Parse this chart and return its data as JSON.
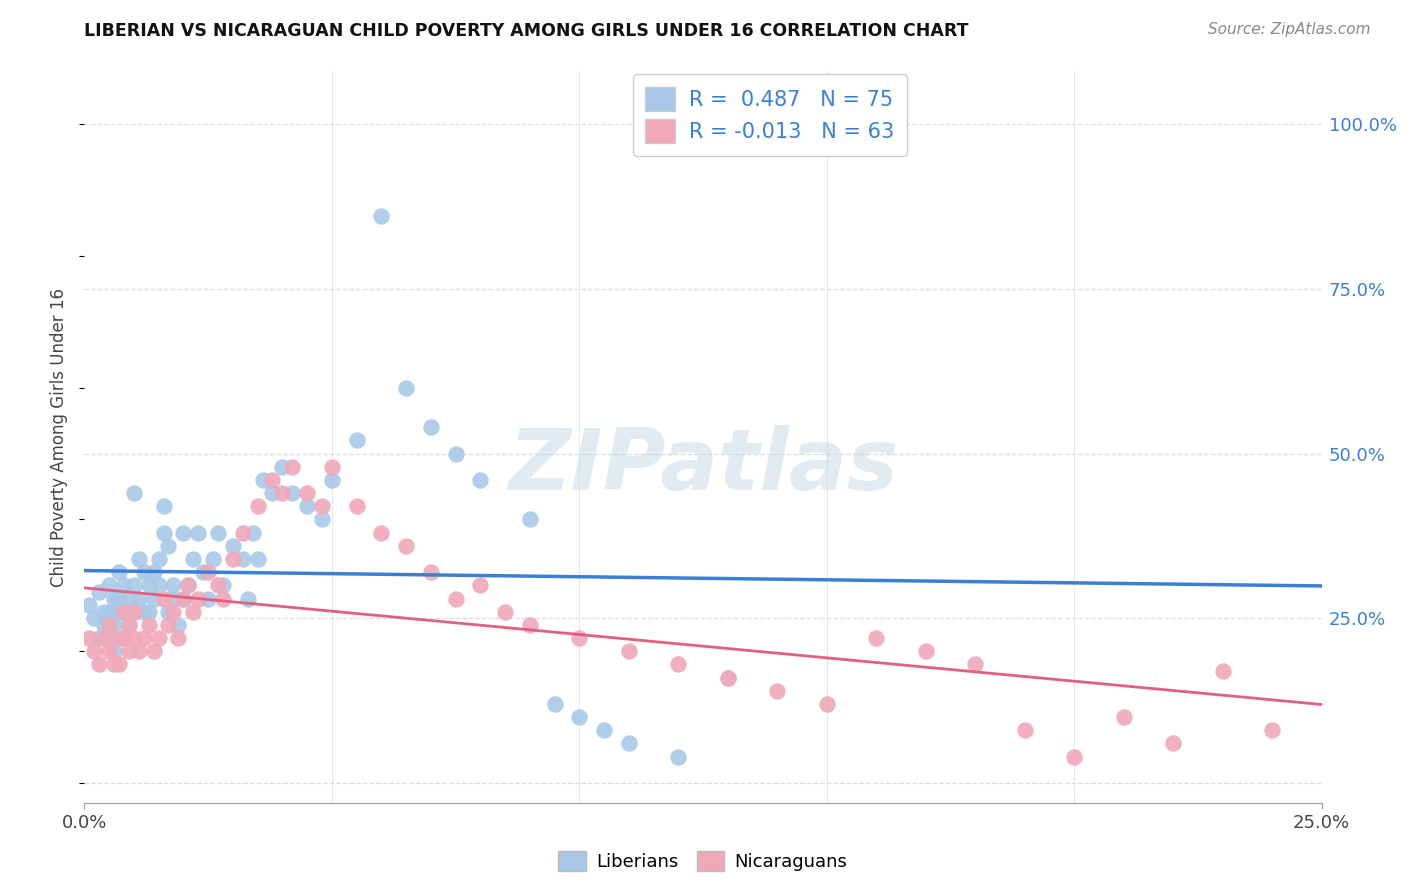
{
  "title": "LIBERIAN VS NICARAGUAN CHILD POVERTY AMONG GIRLS UNDER 16 CORRELATION CHART",
  "source": "Source: ZipAtlas.com",
  "ylabel": "Child Poverty Among Girls Under 16",
  "xlim": [
    0.0,
    0.25
  ],
  "ylim": [
    -0.03,
    1.08
  ],
  "ytick_values": [
    0.0,
    0.25,
    0.5,
    0.75,
    1.0
  ],
  "ytick_labels": [
    "",
    "25.0%",
    "50.0%",
    "75.0%",
    "100.0%"
  ],
  "xtick_values": [
    0.0,
    0.25
  ],
  "xtick_labels": [
    "0.0%",
    "25.0%"
  ],
  "liberian_color": "#a8c8e8",
  "nicaraguan_color": "#f0a8b8",
  "liberian_line_color": "#3a7fd4",
  "nicaraguan_line_color": "#e06080",
  "dash_line_color": "#b0c8d8",
  "r_liberian": 0.487,
  "n_liberian": 75,
  "r_nicaraguan": -0.013,
  "n_nicaraguan": 63,
  "bg_color": "#ffffff",
  "grid_color": "#d5dfe8",
  "watermark": "ZIPatlas",
  "title_color": "#111111",
  "source_color": "#888888",
  "legend_r_color": "#000000",
  "legend_val_color": "#3a7fd4",
  "liberian_x": [
    0.001,
    0.002,
    0.003,
    0.003,
    0.004,
    0.004,
    0.005,
    0.005,
    0.005,
    0.006,
    0.006,
    0.006,
    0.007,
    0.007,
    0.007,
    0.008,
    0.008,
    0.008,
    0.009,
    0.009,
    0.01,
    0.01,
    0.01,
    0.011,
    0.011,
    0.012,
    0.012,
    0.013,
    0.013,
    0.014,
    0.014,
    0.015,
    0.015,
    0.016,
    0.016,
    0.017,
    0.017,
    0.018,
    0.018,
    0.019,
    0.02,
    0.02,
    0.021,
    0.022,
    0.023,
    0.024,
    0.025,
    0.026,
    0.027,
    0.028,
    0.03,
    0.032,
    0.033,
    0.034,
    0.035,
    0.036,
    0.038,
    0.04,
    0.042,
    0.045,
    0.048,
    0.05,
    0.055,
    0.06,
    0.065,
    0.07,
    0.075,
    0.08,
    0.09,
    0.095,
    0.1,
    0.105,
    0.11,
    0.12,
    0.13
  ],
  "liberian_y": [
    0.27,
    0.25,
    0.29,
    0.22,
    0.26,
    0.24,
    0.3,
    0.22,
    0.26,
    0.28,
    0.24,
    0.2,
    0.26,
    0.28,
    0.32,
    0.26,
    0.22,
    0.3,
    0.24,
    0.28,
    0.3,
    0.26,
    0.44,
    0.28,
    0.34,
    0.26,
    0.32,
    0.3,
    0.26,
    0.32,
    0.28,
    0.34,
    0.3,
    0.42,
    0.38,
    0.36,
    0.26,
    0.3,
    0.28,
    0.24,
    0.28,
    0.38,
    0.3,
    0.34,
    0.38,
    0.32,
    0.28,
    0.34,
    0.38,
    0.3,
    0.36,
    0.34,
    0.28,
    0.38,
    0.34,
    0.46,
    0.44,
    0.48,
    0.44,
    0.42,
    0.4,
    0.46,
    0.52,
    0.86,
    0.6,
    0.54,
    0.5,
    0.46,
    0.4,
    0.12,
    0.1,
    0.08,
    0.06,
    0.04,
    0.16
  ],
  "nicaraguan_x": [
    0.001,
    0.002,
    0.003,
    0.004,
    0.005,
    0.005,
    0.006,
    0.007,
    0.007,
    0.008,
    0.008,
    0.009,
    0.009,
    0.01,
    0.01,
    0.011,
    0.012,
    0.013,
    0.014,
    0.015,
    0.016,
    0.017,
    0.018,
    0.019,
    0.02,
    0.021,
    0.022,
    0.023,
    0.025,
    0.027,
    0.028,
    0.03,
    0.032,
    0.035,
    0.038,
    0.04,
    0.042,
    0.045,
    0.048,
    0.05,
    0.055,
    0.06,
    0.065,
    0.07,
    0.075,
    0.08,
    0.085,
    0.09,
    0.1,
    0.11,
    0.12,
    0.13,
    0.14,
    0.15,
    0.16,
    0.17,
    0.18,
    0.19,
    0.2,
    0.21,
    0.22,
    0.23,
    0.24
  ],
  "nicaraguan_y": [
    0.22,
    0.2,
    0.18,
    0.22,
    0.2,
    0.24,
    0.18,
    0.22,
    0.18,
    0.22,
    0.26,
    0.2,
    0.24,
    0.22,
    0.26,
    0.2,
    0.22,
    0.24,
    0.2,
    0.22,
    0.28,
    0.24,
    0.26,
    0.22,
    0.28,
    0.3,
    0.26,
    0.28,
    0.32,
    0.3,
    0.28,
    0.34,
    0.38,
    0.42,
    0.46,
    0.44,
    0.48,
    0.44,
    0.42,
    0.48,
    0.42,
    0.38,
    0.36,
    0.32,
    0.28,
    0.3,
    0.26,
    0.24,
    0.22,
    0.2,
    0.18,
    0.16,
    0.14,
    0.12,
    0.22,
    0.2,
    0.18,
    0.08,
    0.04,
    0.1,
    0.06,
    0.17,
    0.08
  ]
}
